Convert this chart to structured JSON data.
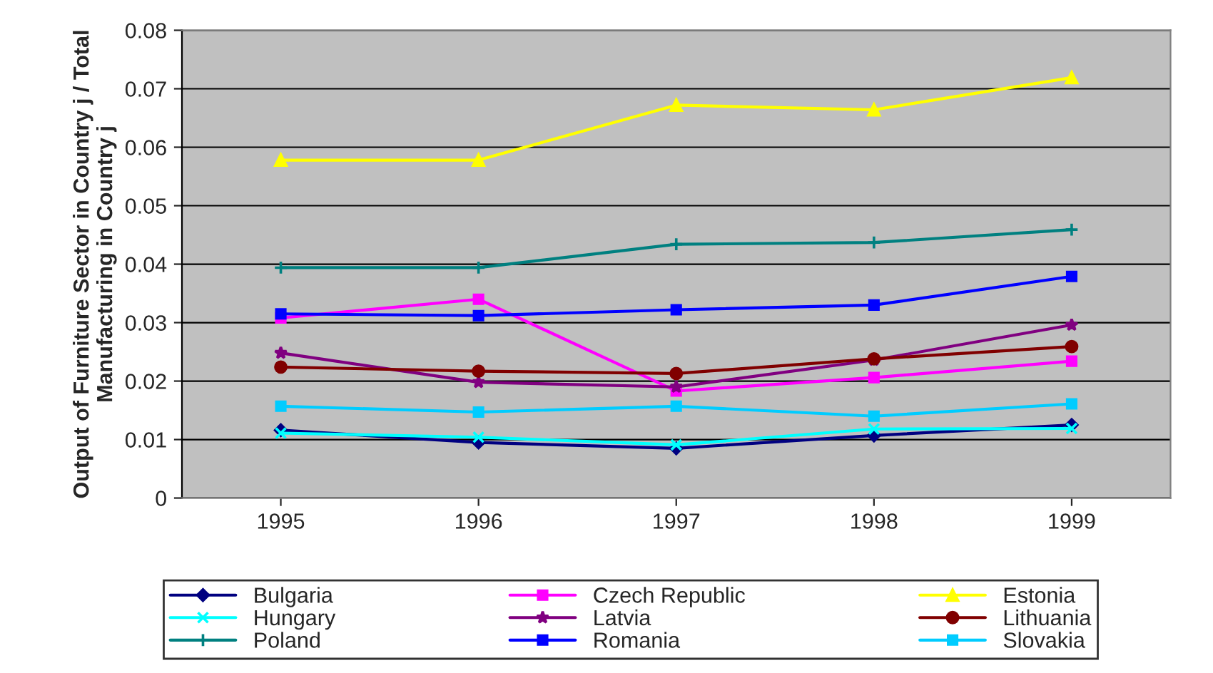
{
  "chart_data": {
    "type": "line",
    "ylabel": "Output of Furniture Sector in Country j / Total Manufacturing in Country j",
    "categories": [
      "1995",
      "1996",
      "1997",
      "1998",
      "1999"
    ],
    "ylim": [
      0,
      0.08
    ],
    "yticks": [
      {
        "value": 0,
        "label": "0"
      },
      0.01,
      0.02,
      0.03,
      0.04,
      0.05,
      0.06,
      0.07,
      0.08
    ],
    "grid": "y",
    "legend": "bottom",
    "series": [
      {
        "name": "Bulgaria",
        "color": "#000080",
        "marker": "diamond",
        "values": [
          0.0116,
          0.0095,
          0.0085,
          0.0107,
          0.0125
        ]
      },
      {
        "name": "Czech Republic",
        "color": "#ff00ff",
        "marker": "square",
        "values": [
          0.0308,
          0.034,
          0.0183,
          0.0206,
          0.0234
        ]
      },
      {
        "name": "Estonia",
        "color": "#ffff00",
        "marker": "triangle",
        "values": [
          0.0578,
          0.0578,
          0.0672,
          0.0664,
          0.0719
        ]
      },
      {
        "name": "Hungary",
        "color": "#00ffff",
        "marker": "cross",
        "values": [
          0.0111,
          0.0104,
          0.0091,
          0.0118,
          0.0119
        ]
      },
      {
        "name": "Latvia",
        "color": "#800080",
        "marker": "star",
        "values": [
          0.0248,
          0.0198,
          0.019,
          0.0236,
          0.0296
        ]
      },
      {
        "name": "Lithuania",
        "color": "#800000",
        "marker": "circle",
        "values": [
          0.0224,
          0.0217,
          0.0213,
          0.0238,
          0.0259
        ]
      },
      {
        "name": "Poland",
        "color": "#008080",
        "marker": "plus",
        "values": [
          0.0394,
          0.0394,
          0.0434,
          0.0437,
          0.0459
        ]
      },
      {
        "name": "Romania",
        "color": "#0000ff",
        "marker": "square",
        "values": [
          0.0315,
          0.0312,
          0.0322,
          0.033,
          0.0379
        ]
      },
      {
        "name": "Slovakia",
        "color": "#00ccff",
        "marker": "square",
        "values": [
          0.0157,
          0.0147,
          0.0157,
          0.014,
          0.0161
        ]
      }
    ]
  }
}
